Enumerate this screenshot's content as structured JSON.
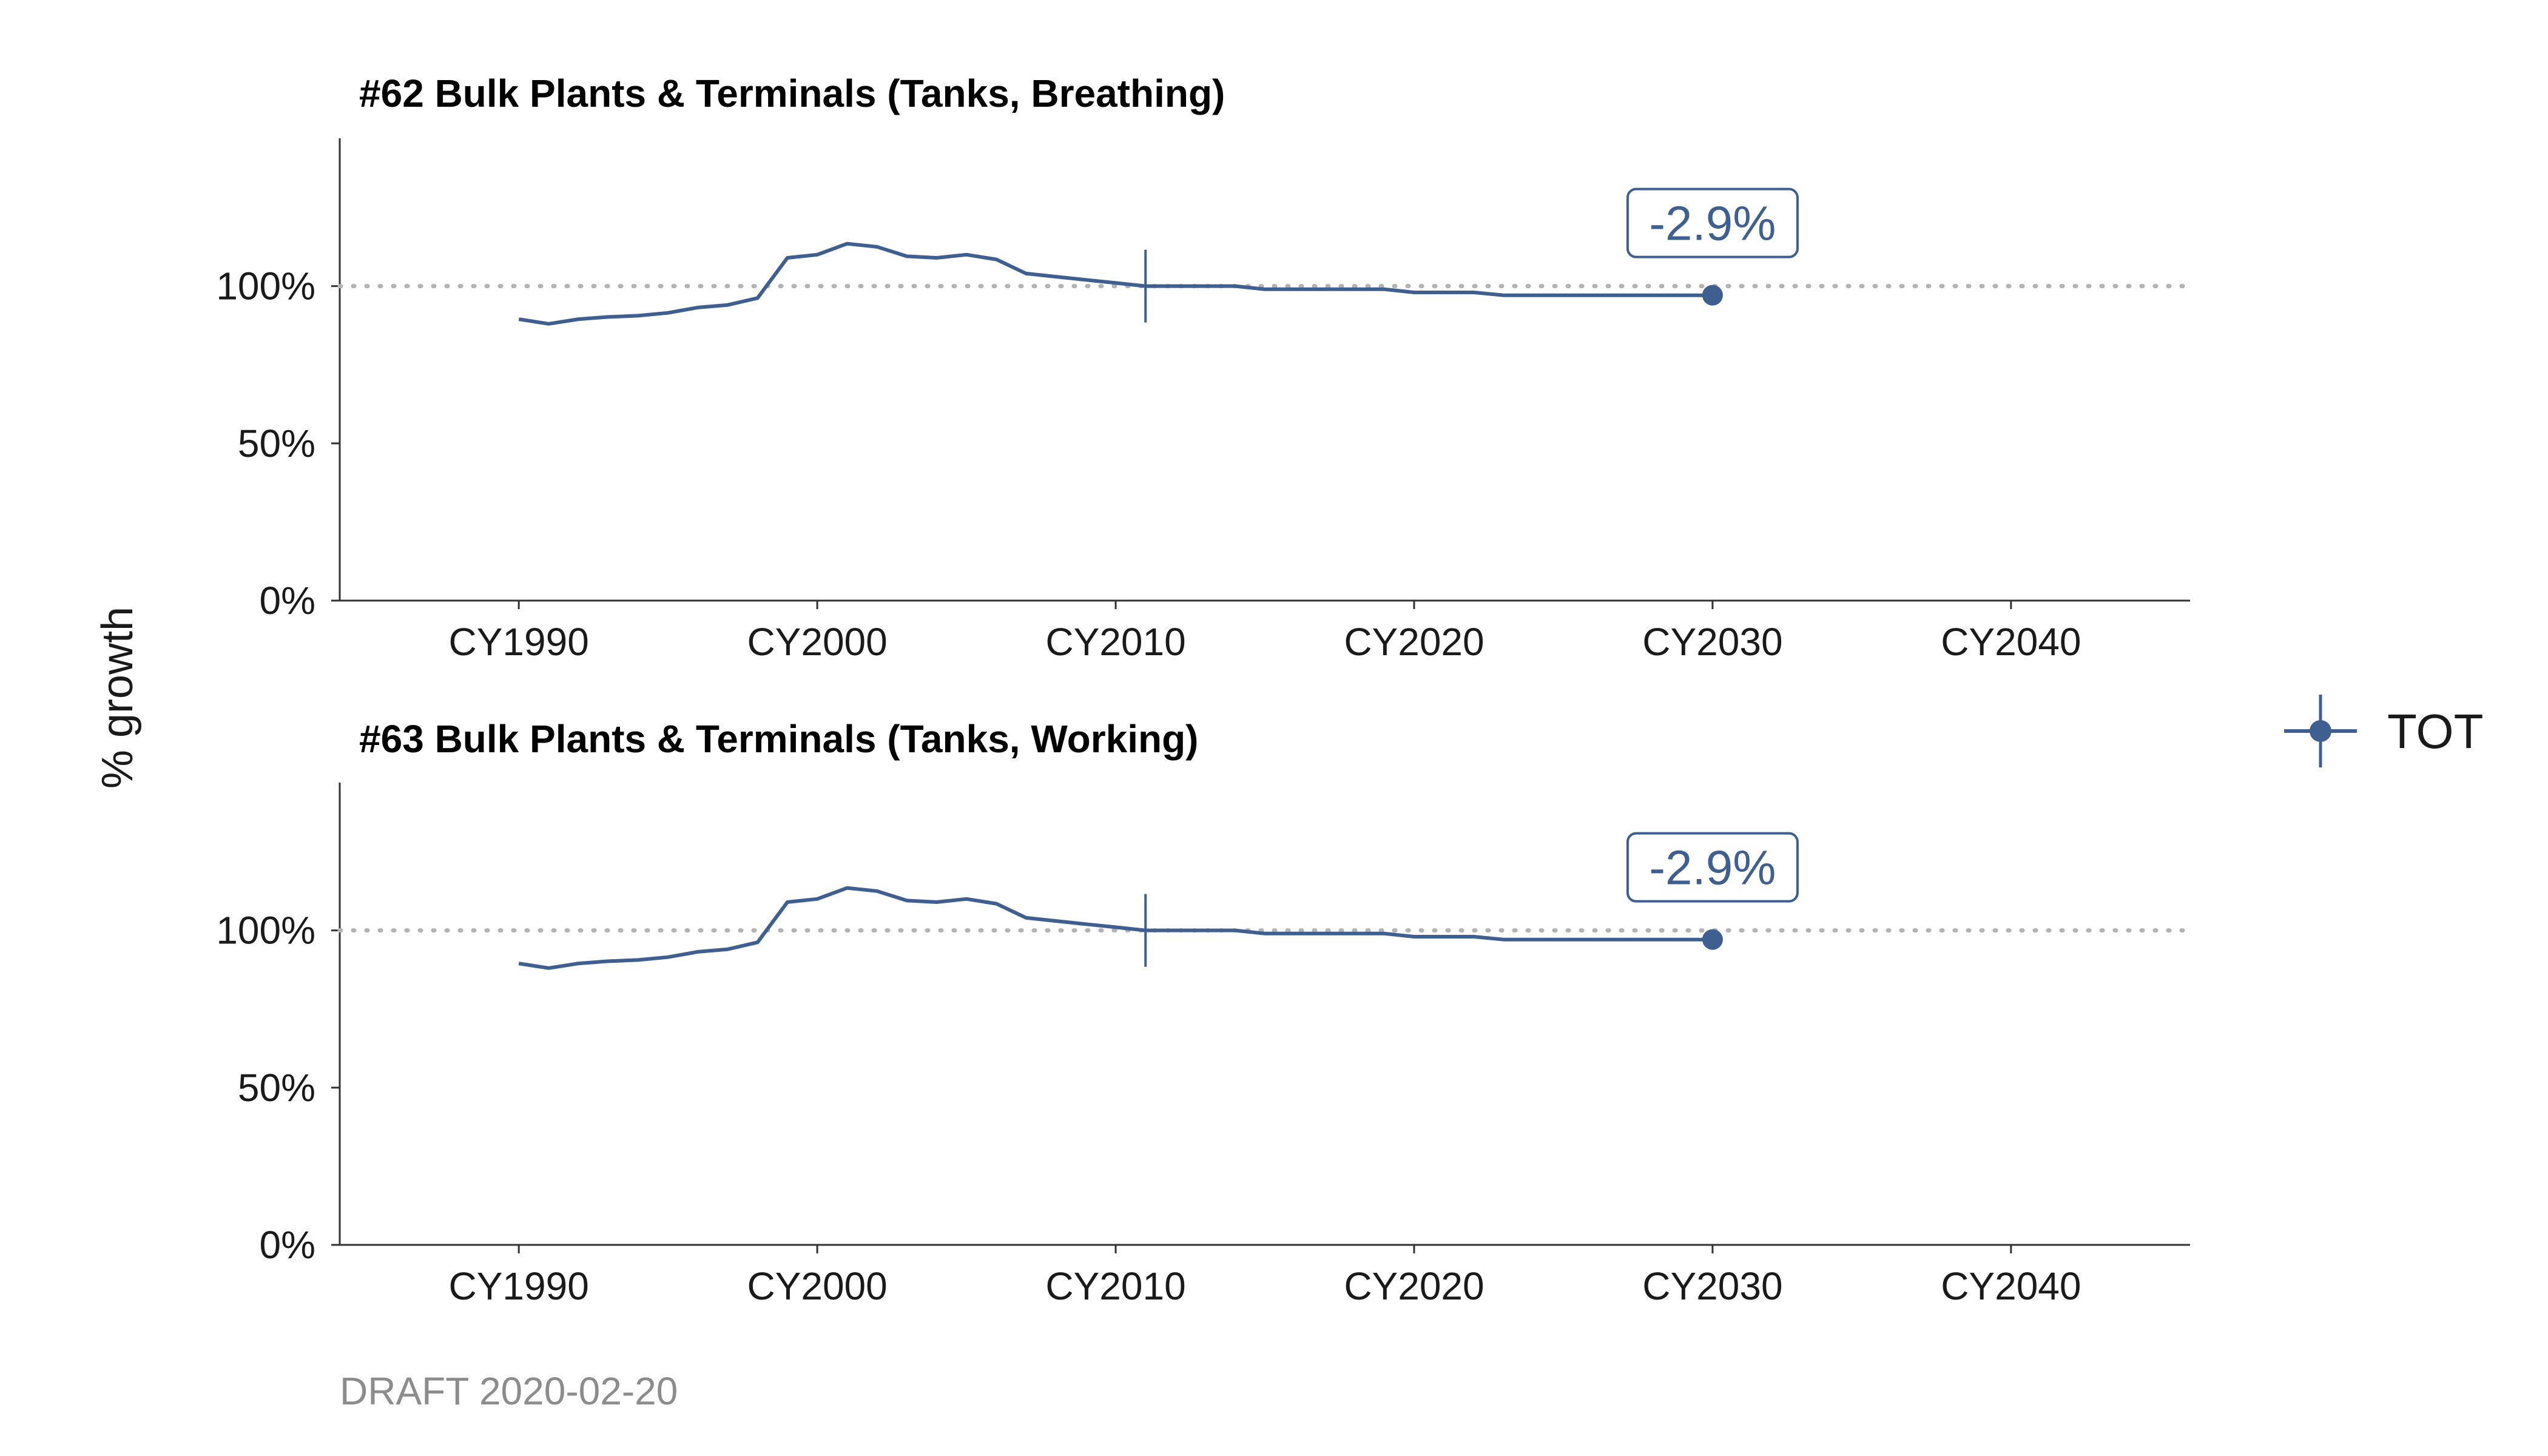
{
  "ylabel": "% growth",
  "footer": "DRAFT 2020-02-20",
  "legend": {
    "label": "TOT"
  },
  "colors": {
    "series": "#3e5f8f",
    "reference": "#b3b3b3",
    "axis": "#333333"
  },
  "chart_data": [
    {
      "type": "line",
      "title": "#62 Bulk Plants & Terminals (Tanks, Breathing)",
      "xlabel": "",
      "ylabel": "% growth",
      "xlim": [
        1984,
        2046
      ],
      "ylim": [
        0,
        1.47
      ],
      "x_ticks": [
        1990,
        2000,
        2010,
        2020,
        2030,
        2040
      ],
      "x_tick_labels": [
        "CY1990",
        "CY2000",
        "CY2010",
        "CY2020",
        "CY2030",
        "CY2040"
      ],
      "y_ticks": [
        0,
        0.5,
        1.0
      ],
      "y_tick_labels": [
        "0%",
        "50%",
        "100%"
      ],
      "reference_line": 1.0,
      "base_year": 2011,
      "annotation": {
        "x": 2030,
        "y": 0.971,
        "label": "-2.9%"
      },
      "series": [
        {
          "name": "TOT",
          "x": [
            1990,
            1991,
            1992,
            1993,
            1994,
            1995,
            1996,
            1997,
            1998,
            1999,
            2000,
            2001,
            2002,
            2003,
            2004,
            2005,
            2006,
            2007,
            2008,
            2009,
            2010,
            2011,
            2012,
            2013,
            2014,
            2015,
            2016,
            2017,
            2018,
            2019,
            2020,
            2021,
            2022,
            2023,
            2024,
            2025,
            2026,
            2027,
            2028,
            2029,
            2030
          ],
          "y": [
            0.895,
            0.88,
            0.895,
            0.902,
            0.906,
            0.915,
            0.932,
            0.94,
            0.962,
            1.09,
            1.1,
            1.135,
            1.125,
            1.095,
            1.09,
            1.1,
            1.085,
            1.04,
            1.03,
            1.02,
            1.01,
            1.0,
            1.0,
            1.0,
            1.0,
            0.99,
            0.99,
            0.99,
            0.99,
            0.99,
            0.98,
            0.98,
            0.98,
            0.971,
            0.971,
            0.971,
            0.971,
            0.971,
            0.971,
            0.971,
            0.971
          ]
        }
      ]
    },
    {
      "type": "line",
      "title": "#63 Bulk Plants & Terminals (Tanks, Working)",
      "xlabel": "",
      "ylabel": "% growth",
      "xlim": [
        1984,
        2046
      ],
      "ylim": [
        0,
        1.47
      ],
      "x_ticks": [
        1990,
        2000,
        2010,
        2020,
        2030,
        2040
      ],
      "x_tick_labels": [
        "CY1990",
        "CY2000",
        "CY2010",
        "CY2020",
        "CY2030",
        "CY2040"
      ],
      "y_ticks": [
        0,
        0.5,
        1.0
      ],
      "y_tick_labels": [
        "0%",
        "50%",
        "100%"
      ],
      "reference_line": 1.0,
      "base_year": 2011,
      "annotation": {
        "x": 2030,
        "y": 0.971,
        "label": "-2.9%"
      },
      "series": [
        {
          "name": "TOT",
          "x": [
            1990,
            1991,
            1992,
            1993,
            1994,
            1995,
            1996,
            1997,
            1998,
            1999,
            2000,
            2001,
            2002,
            2003,
            2004,
            2005,
            2006,
            2007,
            2008,
            2009,
            2010,
            2011,
            2012,
            2013,
            2014,
            2015,
            2016,
            2017,
            2018,
            2019,
            2020,
            2021,
            2022,
            2023,
            2024,
            2025,
            2026,
            2027,
            2028,
            2029,
            2030
          ],
          "y": [
            0.895,
            0.88,
            0.895,
            0.902,
            0.906,
            0.915,
            0.932,
            0.94,
            0.962,
            1.09,
            1.1,
            1.135,
            1.125,
            1.095,
            1.09,
            1.1,
            1.085,
            1.04,
            1.03,
            1.02,
            1.01,
            1.0,
            1.0,
            1.0,
            1.0,
            0.99,
            0.99,
            0.99,
            0.99,
            0.99,
            0.98,
            0.98,
            0.98,
            0.971,
            0.971,
            0.971,
            0.971,
            0.971,
            0.971,
            0.971,
            0.971
          ]
        }
      ]
    }
  ]
}
